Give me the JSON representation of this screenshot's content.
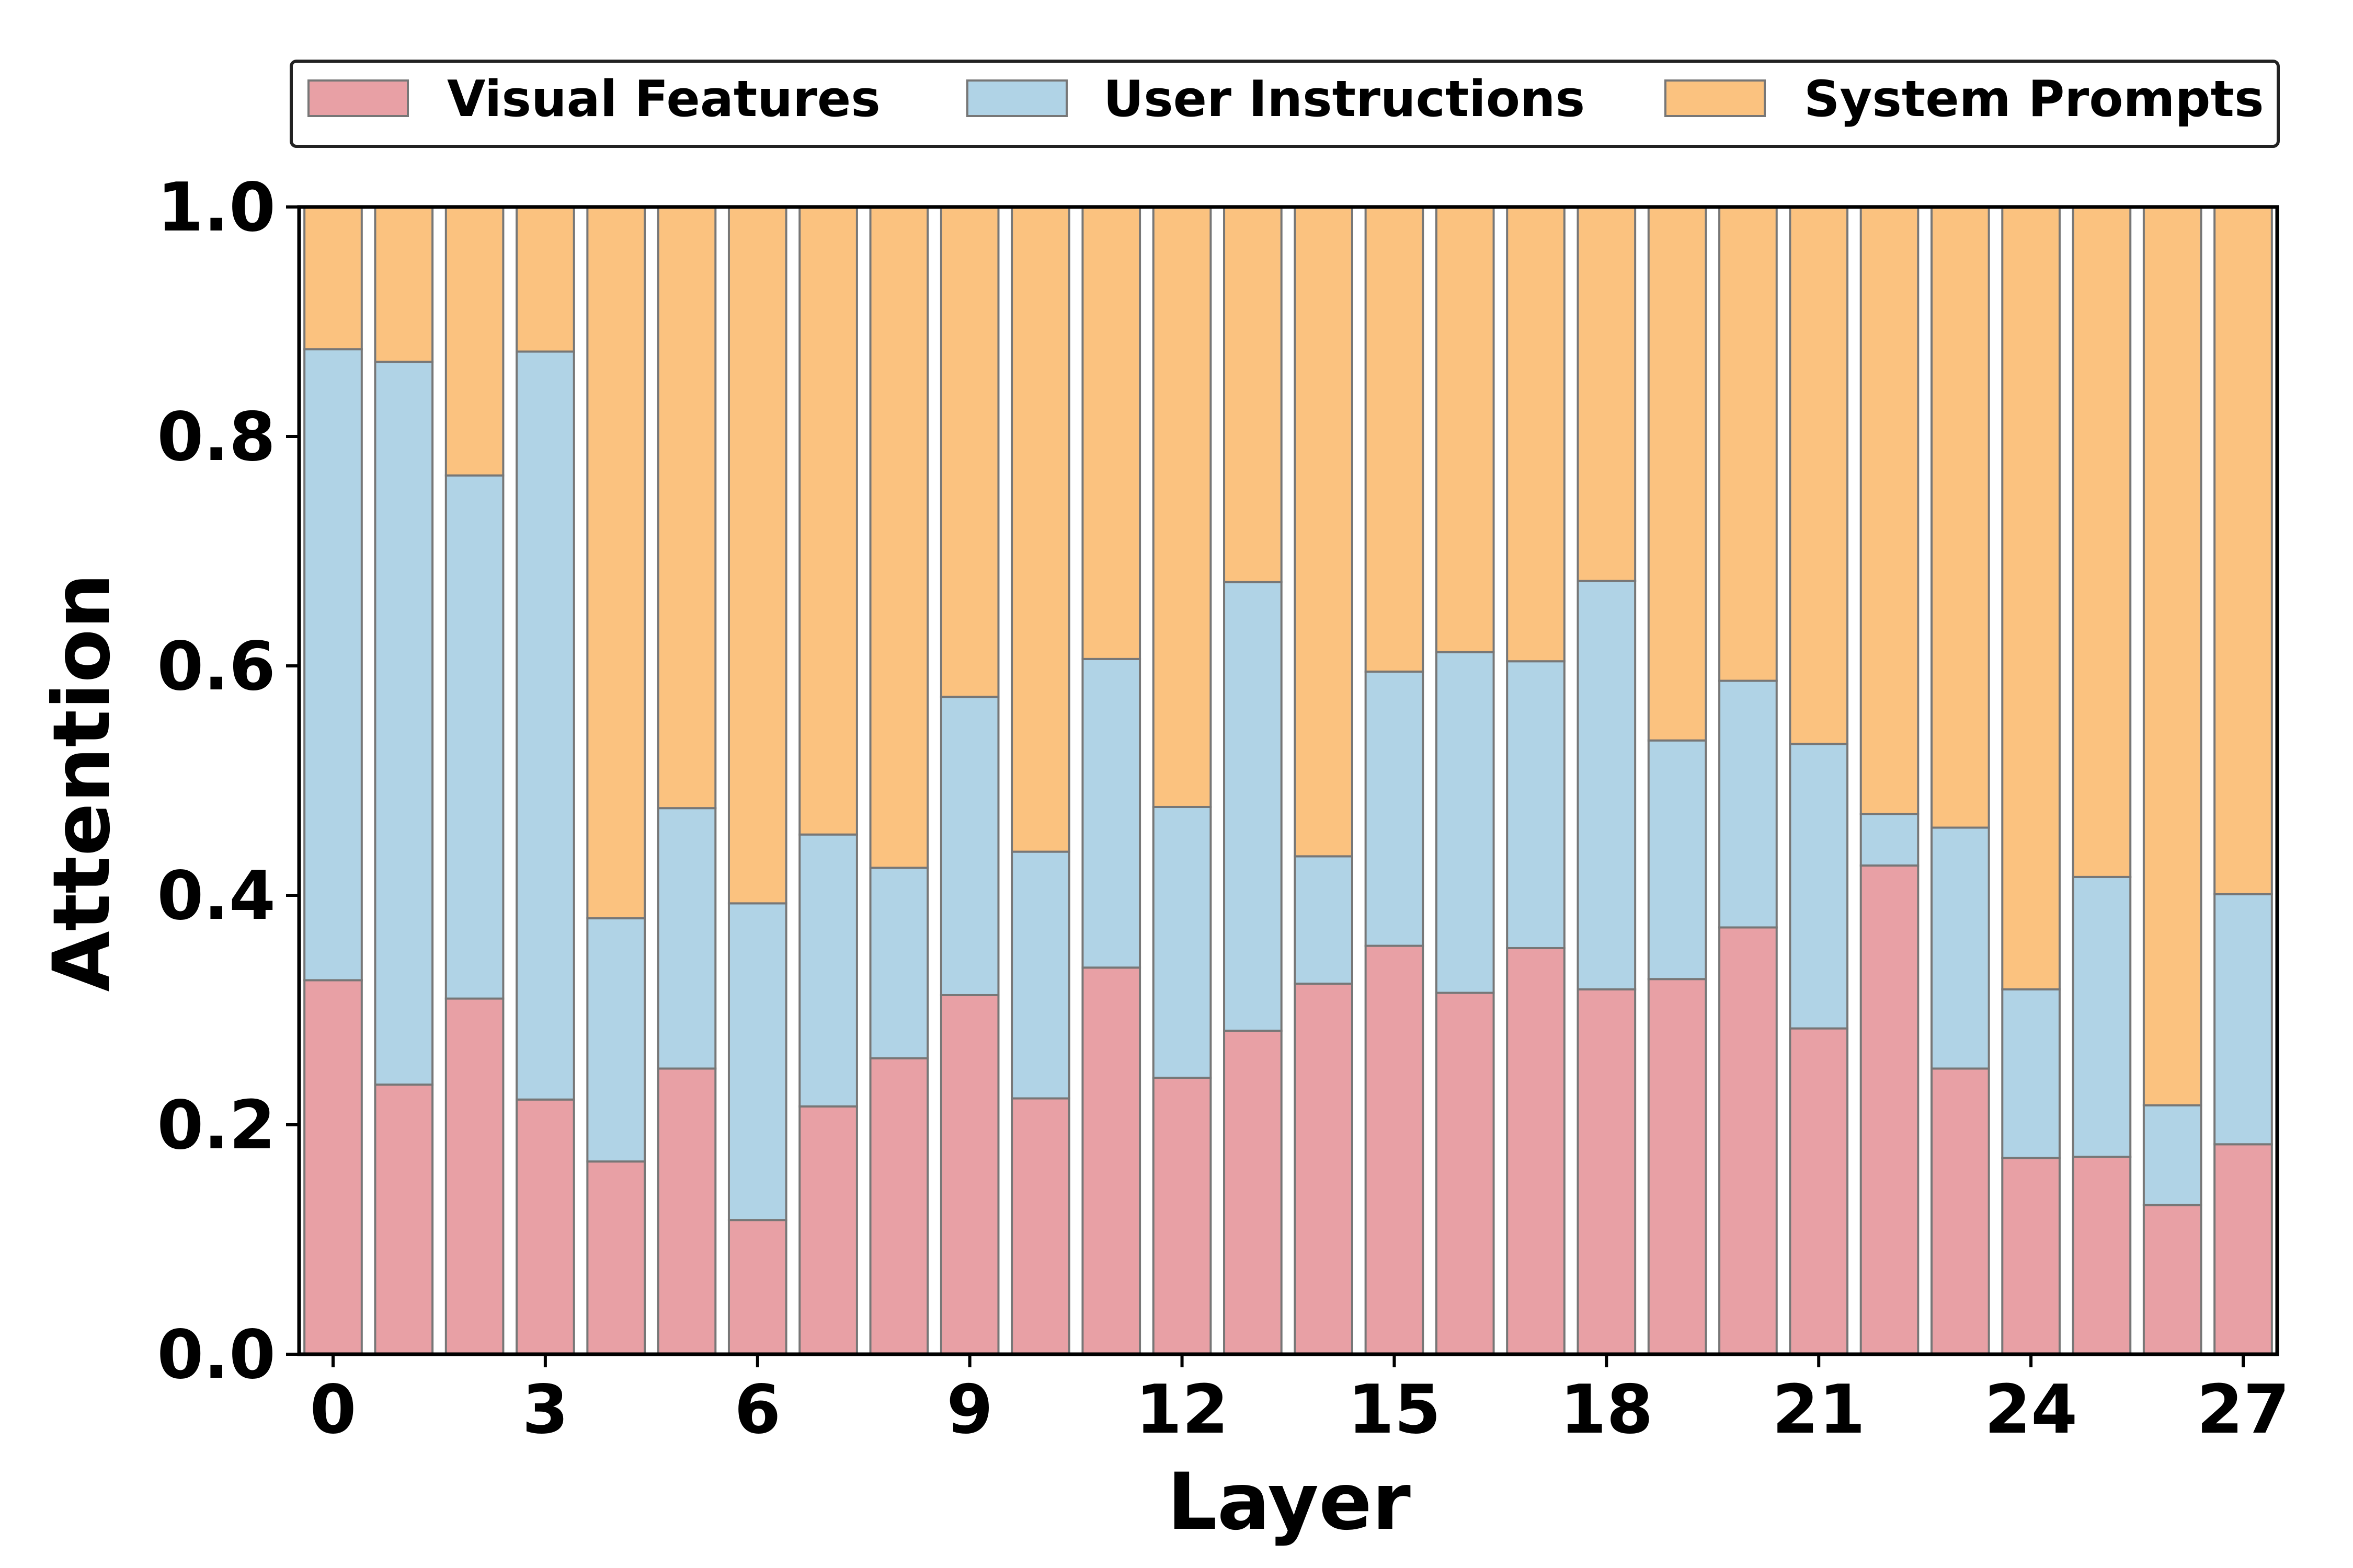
{
  "chart_data": {
    "type": "bar",
    "stacked": true,
    "title": "",
    "xlabel": "Layer",
    "ylabel": "Attention",
    "ylim": [
      0,
      1
    ],
    "yticks": [
      "0.0",
      "0.2",
      "0.4",
      "0.6",
      "0.8",
      "1.0"
    ],
    "xticks": [
      "0",
      "3",
      "6",
      "9",
      "12",
      "15",
      "18",
      "21",
      "24",
      "27"
    ],
    "categories": [
      "0",
      "1",
      "2",
      "3",
      "4",
      "5",
      "6",
      "7",
      "8",
      "9",
      "10",
      "11",
      "12",
      "13",
      "14",
      "15",
      "16",
      "17",
      "18",
      "19",
      "20",
      "21",
      "22",
      "23",
      "24",
      "25",
      "26",
      "27"
    ],
    "legend_position": "top",
    "series": [
      {
        "name": "Visual Features",
        "color": "#e8a0a5",
        "values": [
          0.326,
          0.235,
          0.31,
          0.222,
          0.168,
          0.249,
          0.117,
          0.216,
          0.258,
          0.313,
          0.223,
          0.337,
          0.241,
          0.282,
          0.323,
          0.356,
          0.315,
          0.354,
          0.318,
          0.327,
          0.372,
          0.284,
          0.426,
          0.249,
          0.171,
          0.172,
          0.13,
          0.183
        ]
      },
      {
        "name": "User Instructions",
        "color": "#b0d3e6",
        "values": [
          0.55,
          0.63,
          0.456,
          0.652,
          0.212,
          0.227,
          0.276,
          0.237,
          0.166,
          0.26,
          0.215,
          0.269,
          0.236,
          0.391,
          0.111,
          0.239,
          0.297,
          0.25,
          0.356,
          0.208,
          0.215,
          0.248,
          0.045,
          0.21,
          0.147,
          0.244,
          0.087,
          0.218
        ]
      },
      {
        "name": "System Prompts",
        "color": "#fbc27f",
        "values": [
          0.124,
          0.135,
          0.234,
          0.126,
          0.62,
          0.524,
          0.607,
          0.547,
          0.576,
          0.427,
          0.562,
          0.394,
          0.523,
          0.327,
          0.566,
          0.405,
          0.388,
          0.396,
          0.326,
          0.465,
          0.413,
          0.468,
          0.529,
          0.541,
          0.682,
          0.584,
          0.783,
          0.599
        ]
      }
    ]
  }
}
